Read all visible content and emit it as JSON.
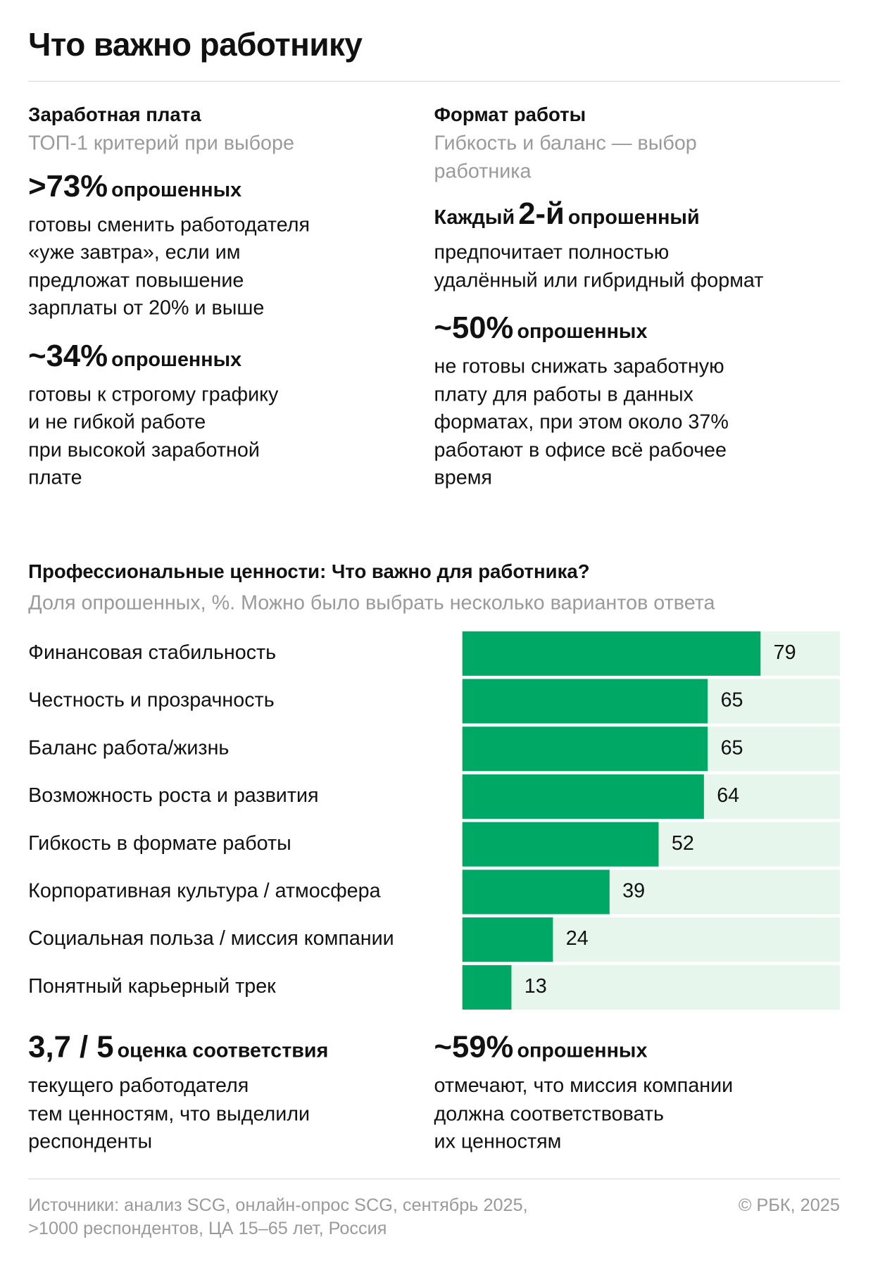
{
  "title": "Что важно работнику",
  "columns": [
    {
      "heading": "Заработная плата",
      "subtitle": [
        "ТОП-1 критерий при выборе"
      ],
      "facts": [
        {
          "big": ">73%",
          "suffix": "опрошенных",
          "lines": [
            "готовы сменить работодателя",
            "«уже завтра», если им",
            "предложат повышение",
            "зарплаты от 20% и выше"
          ]
        },
        {
          "big": "~34%",
          "suffix": "опрошенных",
          "lines": [
            "готовы к строгому графику",
            "и не гибкой работе",
            "при высокой заработной",
            "плате"
          ]
        }
      ]
    },
    {
      "heading": "Формат работы",
      "subtitle": [
        "Гибкость и баланс — выбор",
        "работника"
      ],
      "facts": [
        {
          "prefix": "Каждый",
          "big": "2-й",
          "suffix": "опрошенный",
          "lines": [
            "предпочитает полностью",
            "удалённый или гибридный формат"
          ]
        },
        {
          "big": "~50%",
          "suffix": "опрошенных",
          "lines": [
            "не готовы снижать заработную",
            "плату для работы в данных",
            "форматах, при этом около 37%",
            "работают в офисе всё рабочее",
            "время"
          ]
        }
      ]
    }
  ],
  "chart_data": {
    "type": "bar",
    "orientation": "horizontal",
    "title": "Профессиональные ценности: Что важно для работника?",
    "subtitle": "Доля опрошенных, %. Можно было выбрать несколько вариантов ответа",
    "categories": [
      "Финансовая стабильность",
      "Честность и прозрачность",
      "Баланс работа/жизнь",
      "Возможность роста и развития",
      "Гибкость в формате работы",
      "Корпоративная культура / атмосфера",
      "Социальная польза / миссия компании",
      "Понятный карьерный трек"
    ],
    "values": [
      79,
      65,
      65,
      64,
      52,
      39,
      24,
      13
    ],
    "xlim": [
      0,
      100
    ],
    "color": "#00a865",
    "track_color": "#e6f6ed"
  },
  "summary": [
    {
      "big": "3,7 / 5",
      "suffix": "оценка соответствия",
      "lines": [
        "текущего работодателя",
        "тем ценностям, что выделили",
        "респонденты"
      ]
    },
    {
      "big": "~59%",
      "suffix": "опрошенных",
      "lines": [
        "отмечают, что миссия компании",
        "должна соответствовать",
        "их ценностям"
      ]
    }
  ],
  "footer": {
    "source": [
      "Источники: анализ SCG, онлайн-опрос SCG, сентябрь 2025,",
      ">1000 респондентов, ЦА 15–65 лет, Россия"
    ],
    "copyright": "© РБК, 2025"
  }
}
